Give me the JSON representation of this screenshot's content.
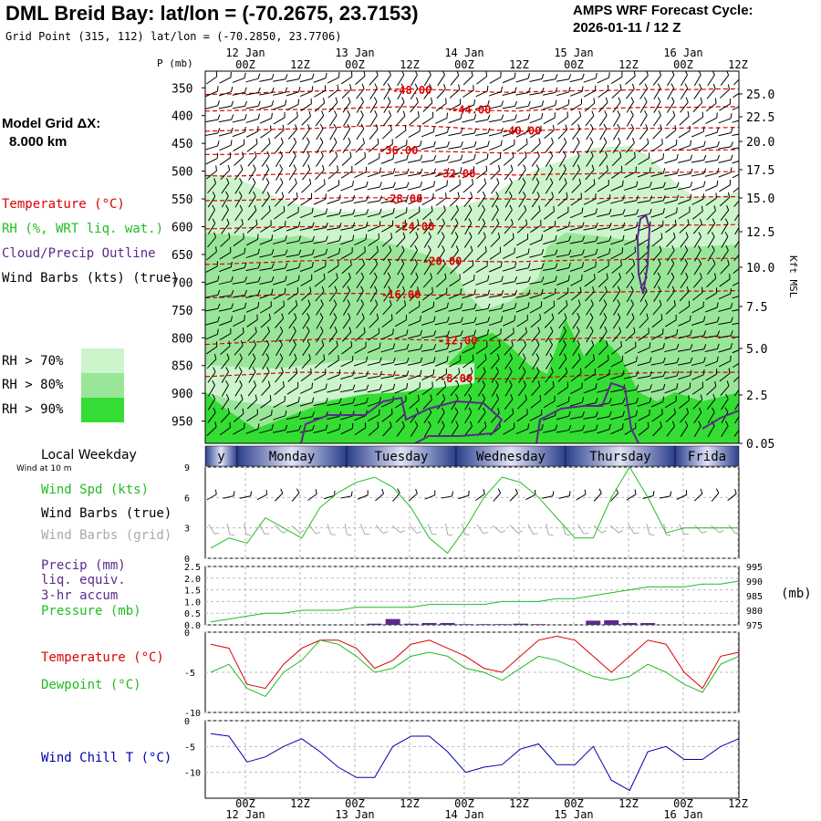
{
  "header": {
    "title": "DML Breid Bay:  lat/lon = (-70.2675, 23.7153)",
    "subtitle": "Grid Point (315, 112) lat/lon = (-70.2850, 23.7706)",
    "cycle_line1": "AMPS WRF Forecast Cycle:",
    "cycle_line2": "2026-01-11 / 12  Z",
    "grid_label": "Model Grid ΔX:",
    "grid_value": "8.000 km"
  },
  "legend": {
    "temperature": "Temperature (°C)",
    "rh": "RH (%, WRT liq. wat.)",
    "cloud": "Cloud/Precip Outline",
    "barbs": "Wind Barbs (kts) (true)",
    "rh_levels": [
      "RH > 70%",
      "RH > 80%",
      "RH > 90%"
    ],
    "rh_colors": [
      "#ccf5cc",
      "#99e699",
      "#33dd33"
    ]
  },
  "time_axis": {
    "top_dates": [
      "12 Jan",
      "13 Jan",
      "14 Jan",
      "15 Jan",
      "16 Jan"
    ],
    "hours": [
      "00Z",
      "12Z",
      "00Z",
      "12Z",
      "00Z",
      "12Z",
      "00Z",
      "12Z",
      "00Z",
      "12Z"
    ],
    "p_label": "P (mb)",
    "right_label": "Kft MSL"
  },
  "weekdays": {
    "title": "Local Weekday",
    "sub": "Wind at 10 m",
    "days": [
      "y",
      "Monday",
      "Tuesday",
      "Wednesday",
      "Thursday",
      "Frida"
    ]
  },
  "panels": {
    "wind_labels": [
      "Wind Spd (kts)",
      "Wind Barbs (true)",
      "Wind Barbs (grid)"
    ],
    "wind_colors": [
      "#22bb22",
      "#000000",
      "#aaaaaa"
    ],
    "precip_labels": [
      "Precip (mm)",
      "liq. equiv.",
      "3-hr accum",
      "Pressure (mb)"
    ],
    "precip_colors": [
      "#5b2a8a",
      "#5b2a8a",
      "#5b2a8a",
      "#22bb22"
    ],
    "pressure_unit": "(mb)",
    "temp_labels": [
      "Temperature (°C)",
      "Dewpoint (°C)"
    ],
    "temp_colors": [
      "#dd0000",
      "#22bb22"
    ],
    "chill_label": "Wind Chill T (°C)",
    "chill_color": "#0000aa"
  },
  "chart_data": [
    {
      "type": "heatmap",
      "name": "cross-section",
      "y_ticks_mb": [
        350,
        400,
        450,
        500,
        550,
        600,
        650,
        700,
        750,
        800,
        850,
        900,
        950
      ],
      "right_ticks_kft": [
        "25.0",
        "22.5",
        "20.0",
        "17.5",
        "15.0",
        "12.5",
        "10.0",
        "7.5",
        "5.0",
        "2.5",
        "0.05"
      ],
      "isotherm_labels": [
        "-48.00",
        "-44.00",
        "-40.00",
        "-36.00",
        "-32.00",
        "-28.00",
        "-24.00",
        "-20.00",
        "-16.00",
        "-12.00",
        "-8.00"
      ],
      "isotherms": [
        {
          "label": "-48.00",
          "p": [
            362,
            361,
            360,
            358,
            357,
            356,
            355,
            354,
            353,
            352,
            353,
            354,
            356,
            358,
            358,
            357,
            356,
            355,
            355,
            354,
            353,
            353,
            353,
            352,
            352
          ]
        },
        {
          "label": "-44.00",
          "p": [
            392,
            391,
            390,
            389,
            389,
            389,
            388,
            386,
            385,
            384,
            385,
            388,
            390,
            391,
            392,
            390,
            388,
            388,
            387,
            386,
            385,
            385,
            385,
            384,
            384
          ]
        },
        {
          "label": "-40.00",
          "p": [
            428,
            427,
            426,
            425,
            424,
            423,
            421,
            419,
            418,
            418,
            419,
            421,
            424,
            426,
            428,
            427,
            425,
            424,
            424,
            423,
            423,
            423,
            422,
            422,
            421
          ]
        },
        {
          "label": "-36.00",
          "p": [
            470,
            470,
            469,
            468,
            466,
            465,
            463,
            461,
            461,
            462,
            464,
            465,
            466,
            467,
            468,
            467,
            466,
            465,
            464,
            463,
            463,
            462,
            462,
            462,
            461
          ]
        },
        {
          "label": "-32.00",
          "p": [
            508,
            509,
            508,
            506,
            505,
            504,
            503,
            502,
            502,
            502,
            503,
            504,
            505,
            506,
            507,
            506,
            505,
            505,
            504,
            503,
            503,
            502,
            502,
            501,
            501
          ]
        },
        {
          "label": "-28.00",
          "p": [
            553,
            553,
            552,
            551,
            550,
            549,
            548,
            548,
            548,
            548,
            548,
            549,
            549,
            550,
            550,
            551,
            551,
            550,
            549,
            548,
            548,
            547,
            547,
            546,
            546
          ]
        },
        {
          "label": "-24.00",
          "p": [
            604,
            603,
            602,
            601,
            600,
            600,
            599,
            598,
            598,
            598,
            598,
            599,
            600,
            600,
            601,
            601,
            600,
            599,
            598,
            598,
            598,
            597,
            597,
            597,
            596
          ]
        },
        {
          "label": "-20.00",
          "p": [
            668,
            667,
            665,
            664,
            662,
            661,
            660,
            659,
            659,
            660,
            661,
            662,
            662,
            663,
            663,
            662,
            661,
            660,
            660,
            659,
            659,
            658,
            658,
            657,
            657
          ]
        },
        {
          "label": "-16.00",
          "p": [
            728,
            727,
            725,
            723,
            722,
            721,
            720,
            720,
            721,
            722,
            723,
            723,
            722,
            722,
            721,
            720,
            719,
            718,
            718,
            717,
            717,
            716,
            716,
            716,
            715
          ]
        },
        {
          "label": "-12.00",
          "p": [
            812,
            810,
            808,
            806,
            804,
            803,
            802,
            802,
            802,
            803,
            804,
            805,
            805,
            805,
            804,
            803,
            802,
            801,
            800,
            800,
            799,
            799,
            799,
            798,
            798
          ]
        },
        {
          "label": "-8.00",
          "p": [
            870,
            868,
            866,
            864,
            862,
            862,
            863,
            864,
            866,
            868,
            870,
            872,
            873,
            874,
            874,
            872,
            870,
            868,
            866,
            864,
            863,
            862,
            862,
            862,
            862
          ]
        }
      ]
    },
    {
      "type": "line",
      "name": "wind",
      "ylim": [
        0,
        9
      ],
      "yticks": [
        0,
        3,
        6,
        9
      ],
      "series": [
        {
          "name": "Wind Spd (kts)",
          "values": [
            1.0,
            2.0,
            1.5,
            4.0,
            3.0,
            2.0,
            5.0,
            6.5,
            7.5,
            8.0,
            7.0,
            5.0,
            2.0,
            0.5,
            3.0,
            6.0,
            8.0,
            7.5,
            6.0,
            4.0,
            2.0,
            2.0,
            6.0,
            9.0,
            6.0,
            2.5,
            3.0,
            3.0,
            3.0,
            3.0
          ]
        }
      ]
    },
    {
      "type": "bar",
      "name": "precip-pressure",
      "ylim": [
        0.0,
        2.5
      ],
      "yticks": [
        0.0,
        0.5,
        1.0,
        1.5,
        2.0,
        2.5
      ],
      "y2lim": [
        975,
        995
      ],
      "y2ticks": [
        975,
        980,
        985,
        990,
        995
      ],
      "precip": [
        0,
        0,
        0,
        0,
        0,
        0,
        0,
        0,
        0,
        0.05,
        0.25,
        0.05,
        0.08,
        0.08,
        0.03,
        0.03,
        0.03,
        0.05,
        0.03,
        0,
        0,
        0.18,
        0.2,
        0.08,
        0.08,
        0,
        0,
        0,
        0,
        0
      ],
      "pressure": [
        976,
        977,
        978,
        979,
        979,
        980,
        980,
        980,
        981,
        981,
        981,
        981,
        982,
        982,
        982,
        982,
        983,
        983,
        983,
        984,
        984,
        985,
        986,
        987,
        988,
        988,
        988,
        989,
        989,
        990
      ]
    },
    {
      "type": "line",
      "name": "temperature",
      "ylim": [
        -10,
        0
      ],
      "yticks": [
        -10,
        -5,
        0
      ],
      "series": [
        {
          "name": "Temperature (°C)",
          "values": [
            -1.5,
            -2.0,
            -6.5,
            -7.0,
            -4.0,
            -2.0,
            -1.0,
            -1.0,
            -2.0,
            -4.5,
            -3.5,
            -1.5,
            -1.0,
            -2.0,
            -3.0,
            -4.5,
            -5.0,
            -3.0,
            -1.0,
            -0.5,
            -1.0,
            -3.0,
            -5.0,
            -3.0,
            -1.0,
            -1.5,
            -5.0,
            -7.0,
            -3.0,
            -2.5
          ]
        },
        {
          "name": "Dewpoint (°C)",
          "values": [
            -5.0,
            -4.0,
            -7.0,
            -8.0,
            -5.0,
            -3.5,
            -1.0,
            -1.5,
            -3.0,
            -5.0,
            -4.5,
            -3.0,
            -2.5,
            -3.0,
            -4.5,
            -5.0,
            -6.0,
            -4.5,
            -3.0,
            -3.5,
            -4.5,
            -5.5,
            -6.0,
            -5.5,
            -4.0,
            -5.0,
            -6.5,
            -7.5,
            -4.0,
            -3.0
          ]
        }
      ]
    },
    {
      "type": "line",
      "name": "wind-chill",
      "ylim": [
        -15,
        0
      ],
      "yticks": [
        -10,
        -5,
        0
      ],
      "series": [
        {
          "name": "Wind Chill T (°C)",
          "values": [
            -2.5,
            -3.0,
            -8.0,
            -7.0,
            -5.0,
            -3.5,
            -6.0,
            -9.0,
            -11.0,
            -11.0,
            -5.0,
            -3.0,
            -3.0,
            -6.0,
            -10.0,
            -9.0,
            -8.5,
            -5.5,
            -4.5,
            -8.5,
            -8.5,
            -5.0,
            -11.5,
            -13.5,
            -6.0,
            -5.0,
            -7.5,
            -7.5,
            -5.0,
            -3.5
          ]
        }
      ]
    }
  ]
}
